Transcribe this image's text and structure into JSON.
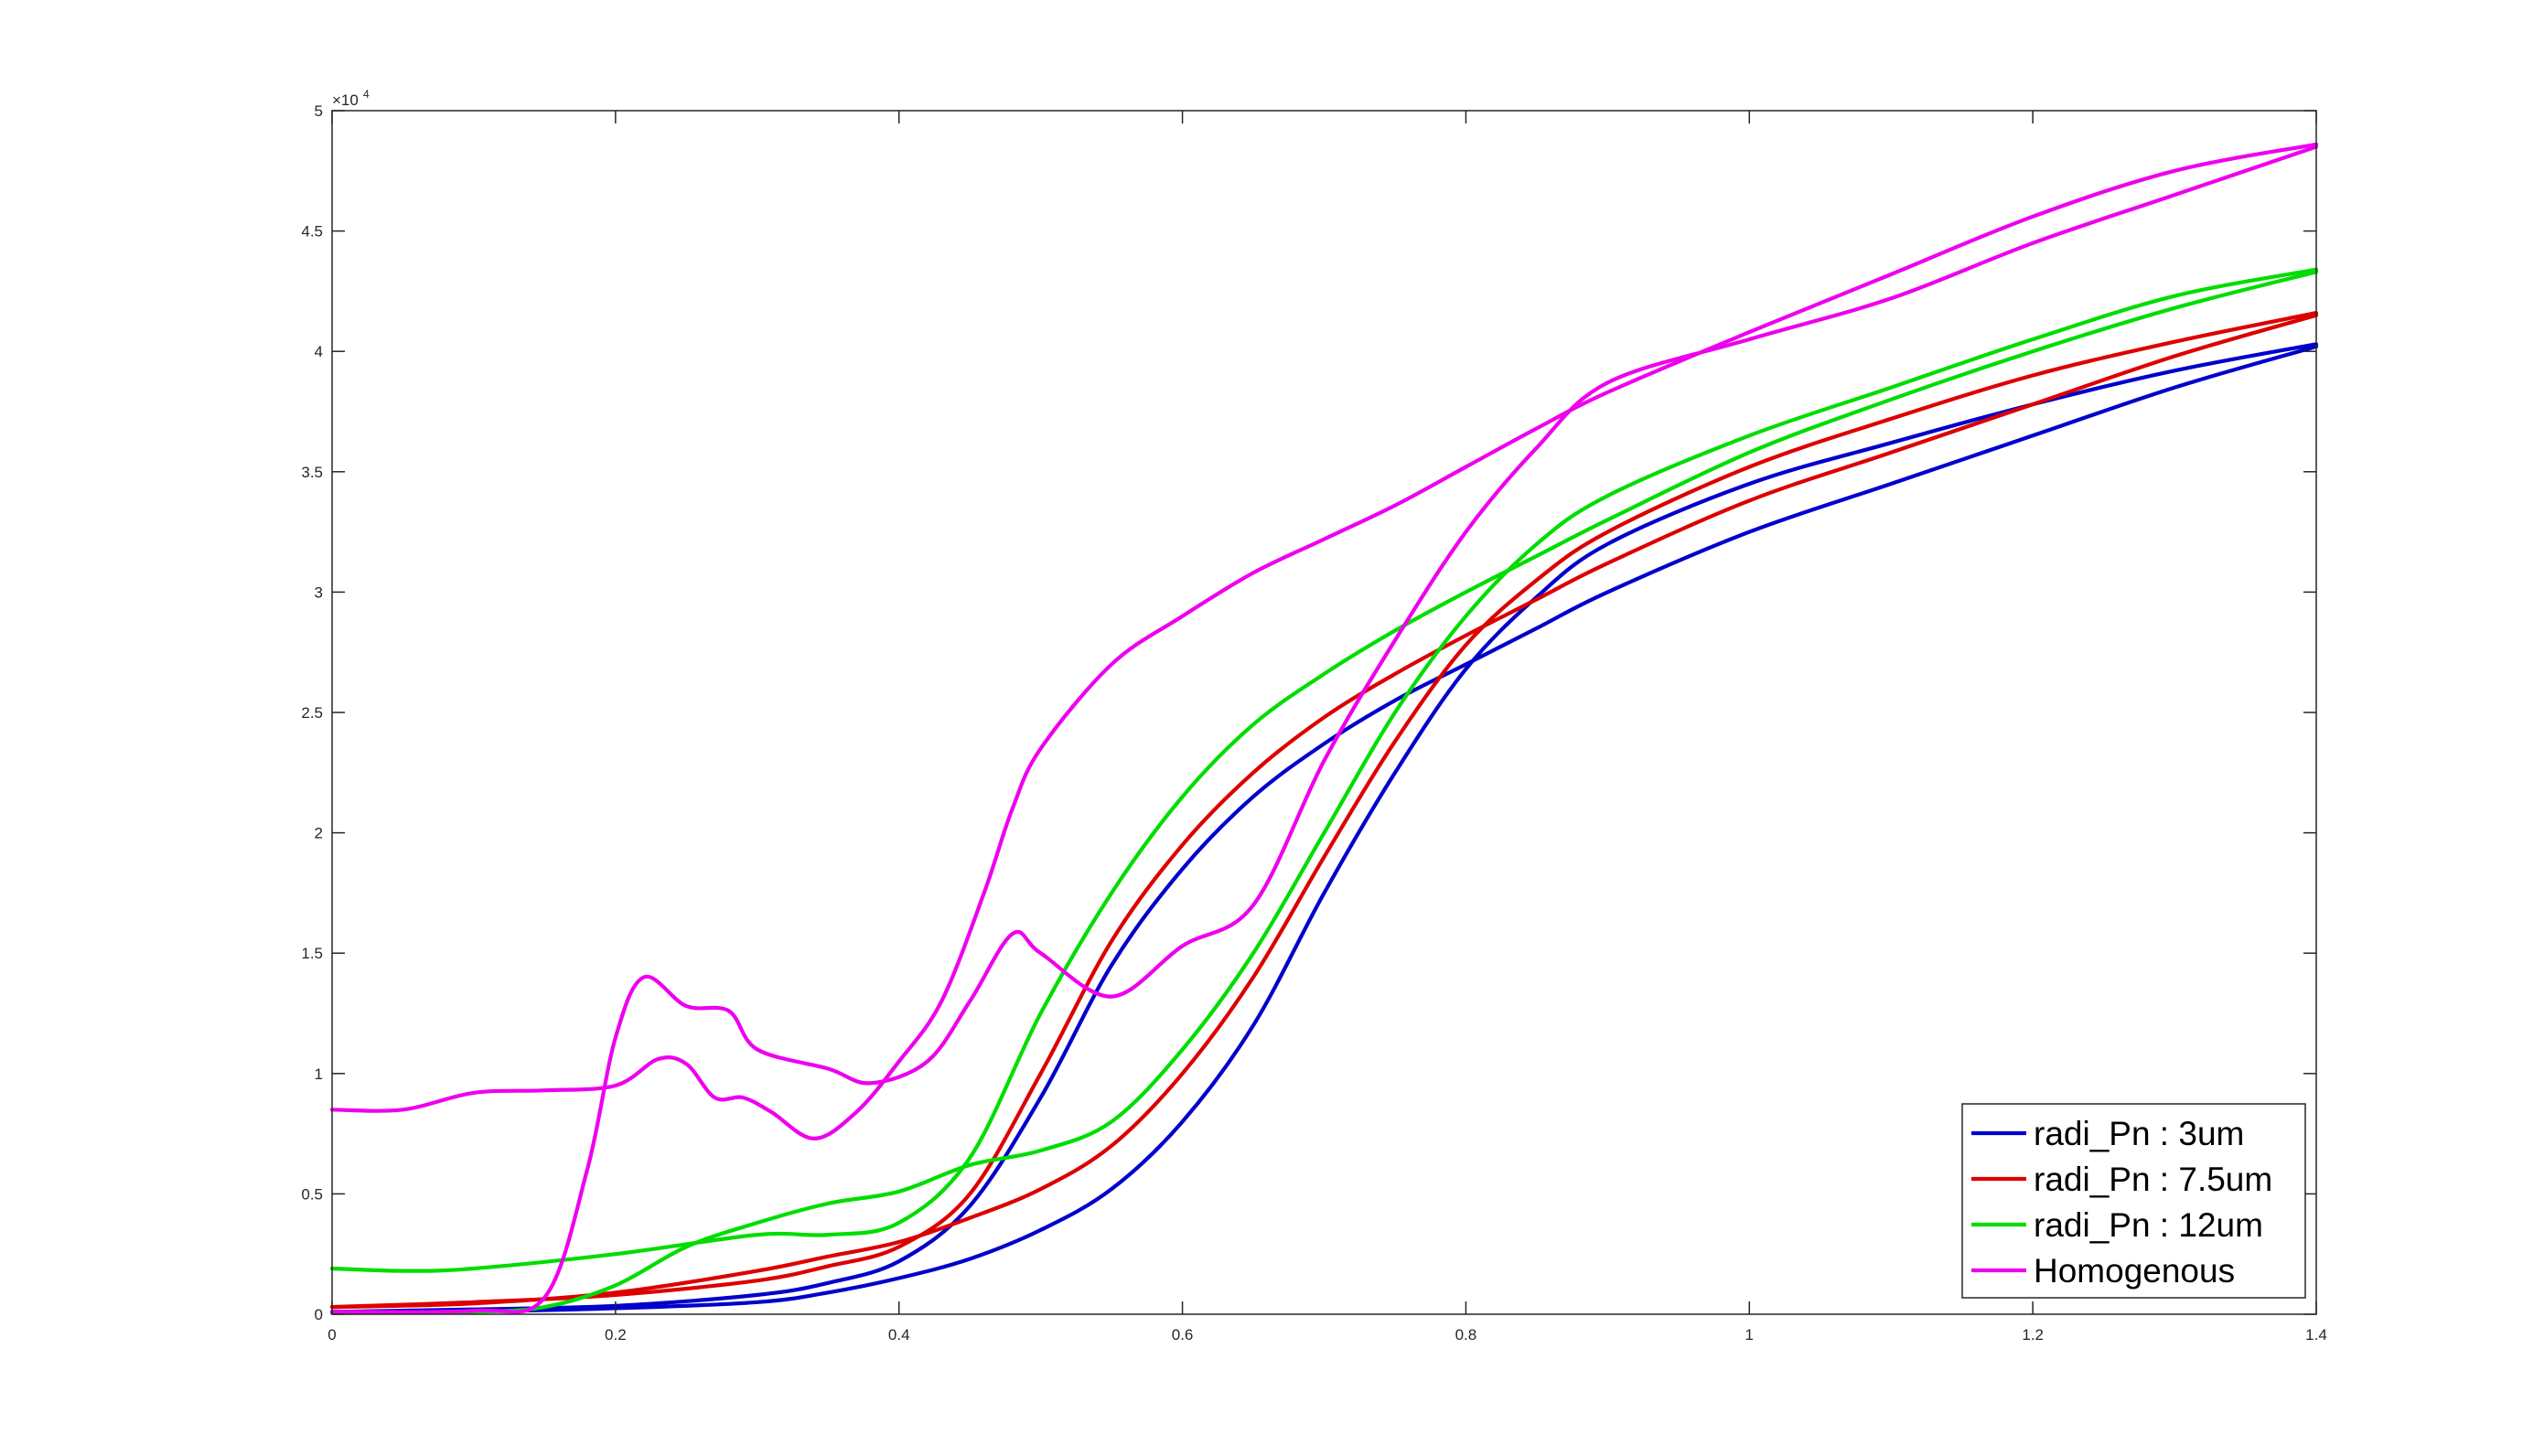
{
  "chart_data": {
    "type": "line",
    "title": "",
    "xlabel": "",
    "ylabel": "",
    "xlim": [
      0,
      1.4
    ],
    "ylim": [
      0,
      50000
    ],
    "y_exponent_label": "×10",
    "y_exponent_power": "4",
    "x_ticks": [
      0,
      0.2,
      0.4,
      0.6,
      0.8,
      1,
      1.2,
      1.4
    ],
    "x_tick_labels": [
      "0",
      "0.2",
      "0.4",
      "0.6",
      "0.8",
      "1",
      "1.2",
      "1.4"
    ],
    "y_ticks": [
      0,
      5000,
      10000,
      15000,
      20000,
      25000,
      30000,
      35000,
      40000,
      45000,
      50000
    ],
    "y_tick_labels": [
      "0",
      "0.5",
      "1",
      "1.5",
      "2",
      "2.5",
      "3",
      "3.5",
      "4",
      "4.5",
      "5"
    ],
    "grid": false,
    "legend_position": "bottom-right",
    "series": [
      {
        "name": "radi_Pn : 3um",
        "color": "#0000cc",
        "branches": [
          [
            [
              0,
              100
            ],
            [
              0.1,
              200
            ],
            [
              0.2,
              350
            ],
            [
              0.3,
              800
            ],
            [
              0.35,
              1300
            ],
            [
              0.4,
              2200
            ],
            [
              0.45,
              4500
            ],
            [
              0.5,
              9000
            ],
            [
              0.55,
              14500
            ],
            [
              0.6,
              18500
            ],
            [
              0.65,
              21500
            ],
            [
              0.7,
              23700
            ],
            [
              0.75,
              25500
            ],
            [
              0.8,
              27000
            ],
            [
              0.85,
              28500
            ],
            [
              0.9,
              30000
            ],
            [
              1.0,
              32500
            ],
            [
              1.1,
              34500
            ],
            [
              1.2,
              36500
            ],
            [
              1.3,
              38500
            ],
            [
              1.4,
              40200
            ]
          ],
          [
            [
              0,
              100
            ],
            [
              0.1,
              120
            ],
            [
              0.2,
              250
            ],
            [
              0.3,
              500
            ],
            [
              0.35,
              900
            ],
            [
              0.4,
              1500
            ],
            [
              0.45,
              2300
            ],
            [
              0.5,
              3500
            ],
            [
              0.55,
              5200
            ],
            [
              0.6,
              8000
            ],
            [
              0.65,
              12000
            ],
            [
              0.7,
              17500
            ],
            [
              0.75,
              22500
            ],
            [
              0.8,
              26800
            ],
            [
              0.85,
              29800
            ],
            [
              0.9,
              32000
            ],
            [
              1.0,
              34500
            ],
            [
              1.1,
              36200
            ],
            [
              1.2,
              37800
            ],
            [
              1.3,
              39200
            ],
            [
              1.4,
              40300
            ]
          ]
        ]
      },
      {
        "name": "radi_Pn : 7.5um",
        "color": "#dd0000",
        "branches": [
          [
            [
              0,
              300
            ],
            [
              0.1,
              500
            ],
            [
              0.2,
              800
            ],
            [
              0.3,
              1400
            ],
            [
              0.35,
              2000
            ],
            [
              0.4,
              2800
            ],
            [
              0.45,
              5000
            ],
            [
              0.5,
              10000
            ],
            [
              0.55,
              15500
            ],
            [
              0.6,
              19500
            ],
            [
              0.65,
              22500
            ],
            [
              0.7,
              24800
            ],
            [
              0.75,
              26600
            ],
            [
              0.8,
              28200
            ],
            [
              0.85,
              29700
            ],
            [
              0.9,
              31200
            ],
            [
              1.0,
              33800
            ],
            [
              1.1,
              35800
            ],
            [
              1.2,
              37800
            ],
            [
              1.3,
              39800
            ],
            [
              1.4,
              41500
            ]
          ],
          [
            [
              0,
              300
            ],
            [
              0.1,
              450
            ],
            [
              0.2,
              900
            ],
            [
              0.3,
              1800
            ],
            [
              0.35,
              2400
            ],
            [
              0.4,
              3000
            ],
            [
              0.45,
              4000
            ],
            [
              0.5,
              5200
            ],
            [
              0.55,
              7000
            ],
            [
              0.6,
              10000
            ],
            [
              0.65,
              14000
            ],
            [
              0.7,
              19000
            ],
            [
              0.75,
              23800
            ],
            [
              0.8,
              27800
            ],
            [
              0.85,
              30500
            ],
            [
              0.9,
              32500
            ],
            [
              1.0,
              35200
            ],
            [
              1.1,
              37200
            ],
            [
              1.2,
              39000
            ],
            [
              1.3,
              40400
            ],
            [
              1.4,
              41600
            ]
          ]
        ]
      },
      {
        "name": "radi_Pn : 12um",
        "color": "#00dd00",
        "branches": [
          [
            [
              0,
              1900
            ],
            [
              0.05,
              1800
            ],
            [
              0.1,
              1900
            ],
            [
              0.2,
              2500
            ],
            [
              0.3,
              3300
            ],
            [
              0.35,
              3300
            ],
            [
              0.4,
              3800
            ],
            [
              0.45,
              6500
            ],
            [
              0.5,
              12500
            ],
            [
              0.55,
              17500
            ],
            [
              0.6,
              21500
            ],
            [
              0.65,
              24500
            ],
            [
              0.7,
              26600
            ],
            [
              0.75,
              28400
            ],
            [
              0.8,
              30000
            ],
            [
              0.85,
              31500
            ],
            [
              0.9,
              33000
            ],
            [
              1.0,
              35800
            ],
            [
              1.1,
              38000
            ],
            [
              1.2,
              40000
            ],
            [
              1.3,
              41800
            ],
            [
              1.4,
              43300
            ]
          ],
          [
            [
              0,
              50
            ],
            [
              0.1,
              100
            ],
            [
              0.15,
              300
            ],
            [
              0.2,
              1200
            ],
            [
              0.25,
              2800
            ],
            [
              0.3,
              3800
            ],
            [
              0.35,
              4600
            ],
            [
              0.4,
              5100
            ],
            [
              0.45,
              6200
            ],
            [
              0.5,
              6800
            ],
            [
              0.55,
              8000
            ],
            [
              0.6,
              11000
            ],
            [
              0.65,
              15000
            ],
            [
              0.7,
              20000
            ],
            [
              0.75,
              25000
            ],
            [
              0.8,
              29000
            ],
            [
              0.85,
              32000
            ],
            [
              0.9,
              34000
            ],
            [
              1.0,
              36500
            ],
            [
              1.1,
              38500
            ],
            [
              1.2,
              40500
            ],
            [
              1.3,
              42300
            ],
            [
              1.4,
              43400
            ]
          ]
        ]
      },
      {
        "name": "Homogenous",
        "color": "#ee00ee",
        "branches": [
          [
            [
              0,
              8500
            ],
            [
              0.05,
              8500
            ],
            [
              0.1,
              9200
            ],
            [
              0.15,
              9300
            ],
            [
              0.2,
              9500
            ],
            [
              0.23,
              10600
            ],
            [
              0.25,
              10400
            ],
            [
              0.27,
              9000
            ],
            [
              0.29,
              9000
            ],
            [
              0.31,
              8400
            ],
            [
              0.34,
              7300
            ],
            [
              0.37,
              8400
            ],
            [
              0.4,
              10500
            ],
            [
              0.43,
              13000
            ],
            [
              0.46,
              17500
            ],
            [
              0.48,
              21000
            ],
            [
              0.5,
              23500
            ],
            [
              0.55,
              27000
            ],
            [
              0.6,
              29000
            ],
            [
              0.65,
              30800
            ],
            [
              0.7,
              32200
            ],
            [
              0.75,
              33600
            ],
            [
              0.8,
              35200
            ],
            [
              0.85,
              36800
            ],
            [
              0.9,
              38300
            ],
            [
              1.0,
              40800
            ],
            [
              1.1,
              43200
            ],
            [
              1.2,
              45600
            ],
            [
              1.3,
              47500
            ],
            [
              1.4,
              48600
            ]
          ],
          [
            [
              0,
              100
            ],
            [
              0.1,
              150
            ],
            [
              0.15,
              700
            ],
            [
              0.18,
              6000
            ],
            [
              0.2,
              11500
            ],
            [
              0.22,
              14000
            ],
            [
              0.25,
              12800
            ],
            [
              0.28,
              12600
            ],
            [
              0.3,
              11000
            ],
            [
              0.35,
              10200
            ],
            [
              0.38,
              9600
            ],
            [
              0.42,
              10500
            ],
            [
              0.45,
              13000
            ],
            [
              0.48,
              15800
            ],
            [
              0.5,
              15000
            ],
            [
              0.55,
              13200
            ],
            [
              0.6,
              15300
            ],
            [
              0.65,
              17000
            ],
            [
              0.7,
              23000
            ],
            [
              0.75,
              28000
            ],
            [
              0.8,
              32500
            ],
            [
              0.85,
              36000
            ],
            [
              0.9,
              38700
            ],
            [
              1.0,
              40500
            ],
            [
              1.1,
              42200
            ],
            [
              1.2,
              44500
            ],
            [
              1.3,
              46500
            ],
            [
              1.4,
              48500
            ]
          ]
        ]
      }
    ]
  }
}
